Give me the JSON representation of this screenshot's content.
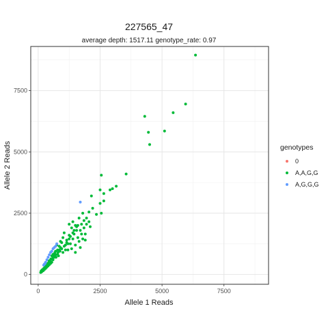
{
  "chart_data": {
    "type": "scatter",
    "title": "227565_47",
    "subtitle": "average depth:  1517.11  genotype_rate:  0.97",
    "xlabel": "Allele 1 Reads",
    "ylabel": "Allele 2 Reads",
    "xlim": [
      -300,
      9300
    ],
    "ylim": [
      -400,
      9300
    ],
    "x_ticks": [
      0,
      2500,
      5000,
      7500
    ],
    "y_ticks": [
      0,
      2500,
      5000,
      7500
    ],
    "x_tick_labels": [
      "0",
      "2500",
      "5000",
      "7500"
    ],
    "y_tick_labels": [
      "0",
      "2500",
      "5000",
      "7500"
    ],
    "grid": true,
    "legend": {
      "title": "genotypes",
      "position": "right"
    },
    "series": [
      {
        "name": "0",
        "color": "#F8766D",
        "points": [
          [
            160,
            180
          ],
          [
            230,
            250
          ]
        ]
      },
      {
        "name": "A,A,G,G",
        "color": "#00BA38",
        "points": [
          [
            6350,
            8950
          ],
          [
            5950,
            6950
          ],
          [
            5450,
            6600
          ],
          [
            5100,
            5850
          ],
          [
            4300,
            6450
          ],
          [
            4450,
            5800
          ],
          [
            4500,
            5300
          ],
          [
            3550,
            4100
          ],
          [
            3150,
            3600
          ],
          [
            3000,
            3500
          ],
          [
            2900,
            3450
          ],
          [
            2650,
            3300
          ],
          [
            2550,
            4050
          ],
          [
            2500,
            3450
          ],
          [
            2650,
            3000
          ],
          [
            2500,
            2900
          ],
          [
            2550,
            2500
          ],
          [
            2200,
            2700
          ],
          [
            2150,
            3200
          ],
          [
            2050,
            2550
          ],
          [
            1950,
            2300
          ],
          [
            1850,
            2200
          ],
          [
            1800,
            2500
          ],
          [
            1750,
            2050
          ],
          [
            1900,
            1650
          ],
          [
            1800,
            1450
          ],
          [
            1700,
            1800
          ],
          [
            1650,
            1350
          ],
          [
            1550,
            1800
          ],
          [
            1500,
            2000
          ],
          [
            1450,
            1650
          ],
          [
            1400,
            1450
          ],
          [
            1350,
            1900
          ],
          [
            1300,
            1250
          ],
          [
            1250,
            1600
          ],
          [
            1200,
            1000
          ],
          [
            1150,
            1400
          ],
          [
            1100,
            1200
          ],
          [
            1050,
            1700
          ],
          [
            1000,
            1500
          ],
          [
            950,
            1300
          ],
          [
            900,
            1100
          ],
          [
            850,
            1000
          ],
          [
            800,
            900
          ],
          [
            750,
            1200
          ],
          [
            700,
            800
          ],
          [
            650,
            700
          ],
          [
            600,
            600
          ],
          [
            550,
            500
          ],
          [
            500,
            450
          ],
          [
            450,
            400
          ],
          [
            400,
            350
          ],
          [
            350,
            300
          ],
          [
            300,
            250
          ],
          [
            250,
            200
          ],
          [
            200,
            150
          ],
          [
            150,
            120
          ],
          [
            100,
            80
          ],
          [
            1250,
            2050
          ],
          [
            1400,
            2150
          ],
          [
            1500,
            1200
          ],
          [
            1600,
            1500
          ],
          [
            1750,
            1650
          ],
          [
            1850,
            1900
          ],
          [
            1950,
            2050
          ],
          [
            2050,
            2150
          ],
          [
            2350,
            2450
          ],
          [
            2100,
            1950
          ],
          [
            1900,
            1400
          ],
          [
            1700,
            1100
          ],
          [
            1500,
            900
          ],
          [
            1350,
            1050
          ],
          [
            1200,
            1250
          ],
          [
            1100,
            1000
          ],
          [
            1000,
            900
          ],
          [
            950,
            1050
          ],
          [
            880,
            950
          ],
          [
            820,
            760
          ],
          [
            780,
            820
          ],
          [
            720,
            700
          ],
          [
            680,
            900
          ],
          [
            640,
            760
          ],
          [
            600,
            820
          ],
          [
            560,
            620
          ],
          [
            520,
            640
          ],
          [
            480,
            520
          ],
          [
            440,
            560
          ],
          [
            420,
            480
          ],
          [
            380,
            440
          ],
          [
            360,
            380
          ],
          [
            320,
            360
          ],
          [
            280,
            300
          ],
          [
            260,
            280
          ],
          [
            220,
            240
          ],
          [
            180,
            200
          ],
          [
            140,
            160
          ],
          [
            120,
            140
          ],
          [
            1300,
            1550
          ],
          [
            1450,
            1800
          ],
          [
            1600,
            2000
          ],
          [
            1650,
            2300
          ],
          [
            1550,
            1950
          ],
          [
            1400,
            1700
          ],
          [
            1250,
            1450
          ],
          [
            1150,
            1300
          ],
          [
            1050,
            1150
          ],
          [
            900,
            1350
          ],
          [
            850,
            1150
          ],
          [
            780,
            1000
          ],
          [
            700,
            950
          ],
          [
            650,
            850
          ],
          [
            600,
            700
          ],
          [
            550,
            760
          ],
          [
            500,
            600
          ],
          [
            460,
            500
          ],
          [
            430,
            450
          ],
          [
            390,
            420
          ],
          [
            340,
            380
          ],
          [
            310,
            320
          ],
          [
            270,
            260
          ],
          [
            240,
            220
          ],
          [
            210,
            180
          ],
          [
            190,
            170
          ],
          [
            170,
            190
          ],
          [
            130,
            100
          ]
        ]
      },
      {
        "name": "A,G,G,G",
        "color": "#619CFF",
        "points": [
          [
            1700,
            2950
          ],
          [
            750,
            1250
          ],
          [
            700,
            1150
          ],
          [
            650,
            1100
          ],
          [
            600,
            1050
          ],
          [
            550,
            950
          ],
          [
            500,
            900
          ],
          [
            450,
            800
          ],
          [
            400,
            700
          ],
          [
            350,
            600
          ],
          [
            300,
            500
          ],
          [
            280,
            450
          ],
          [
            250,
            420
          ],
          [
            220,
            380
          ]
        ]
      }
    ]
  }
}
